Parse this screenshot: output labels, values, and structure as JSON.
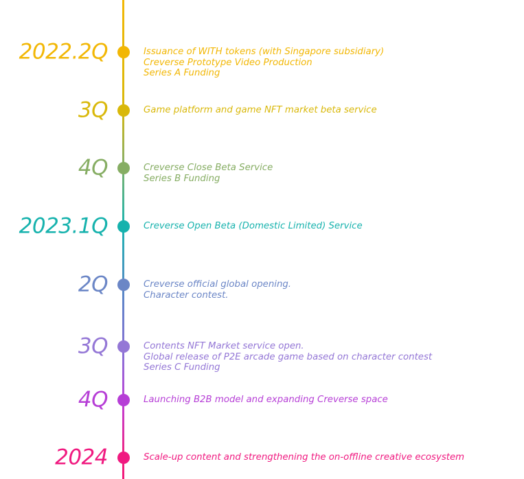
{
  "milestones": [
    {
      "period": "2022.2Q",
      "color": "#f2b705",
      "items": [
        "Issuance of WITH tokens (with Singapore subsidiary)",
        "Creverse Prototype Video Production",
        "Series A Funding"
      ]
    },
    {
      "period": "3Q",
      "color": "#d9b80a",
      "items": [
        "Game platform and game NFT market beta service"
      ]
    },
    {
      "period": "4Q",
      "color": "#86ad63",
      "items": [
        "Creverse Close Beta Service",
        "Series B Funding"
      ]
    },
    {
      "period": "2023.1Q",
      "color": "#16b2ad",
      "items": [
        "Creverse Open Beta (Domestic Limited) Service"
      ]
    },
    {
      "period": "2Q",
      "color": "#6b86c6",
      "items": [
        "Creverse official global opening.",
        "Character contest."
      ]
    },
    {
      "period": "3Q",
      "color": "#9477d6",
      "items": [
        "Contents NFT Market service open.",
        "Global release of P2E arcade game based on character contest",
        "Series C Funding"
      ]
    },
    {
      "period": "4Q",
      "color": "#b63ed6",
      "items": [
        "Launching B2B model and expanding Creverse space"
      ]
    },
    {
      "period": "2024",
      "color": "#f01a80",
      "items": [
        "Scale-up  content and strengthening the on-offline creative ecosystem"
      ]
    }
  ]
}
